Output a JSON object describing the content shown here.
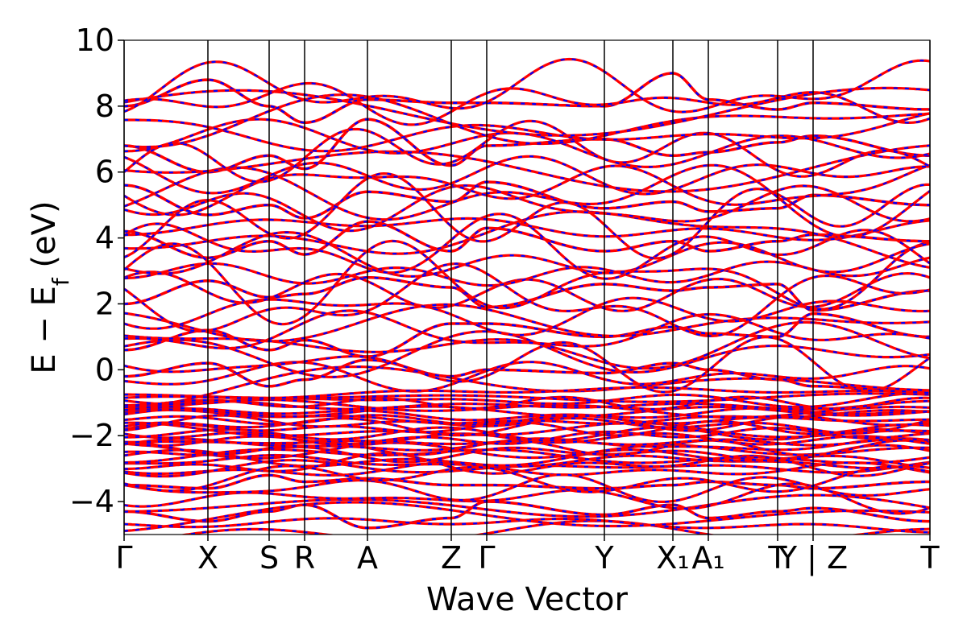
{
  "chart_data": {
    "type": "line",
    "title": "",
    "xlabel": "Wave Vector",
    "ylabel_main": "E − E",
    "ylabel_sub": "f",
    "ylabel_unit": " (eV)",
    "ylim": [
      -5,
      10
    ],
    "yticks": [
      -4,
      -2,
      0,
      2,
      4,
      6,
      8,
      10
    ],
    "ytick_labels": [
      "−4",
      "−2",
      "0",
      "2",
      "4",
      "6",
      "8",
      "10"
    ],
    "x_range": [
      0,
      1
    ],
    "kpoints": [
      {
        "label": "Γ",
        "x": 0.0
      },
      {
        "label": "X",
        "x": 0.104
      },
      {
        "label": "S",
        "x": 0.18
      },
      {
        "label": "R",
        "x": 0.224
      },
      {
        "label": "A",
        "x": 0.302
      },
      {
        "label": "Z",
        "x": 0.406
      },
      {
        "label": "Γ",
        "x": 0.45
      },
      {
        "label": "Y",
        "x": 0.596
      },
      {
        "label": "X₁",
        "x": 0.681
      },
      {
        "label": "A₁",
        "x": 0.725
      },
      {
        "label": "T",
        "x": 0.811
      },
      {
        "label": "Y | Z",
        "x": 0.855
      },
      {
        "label": "T",
        "x": 1.0
      }
    ],
    "grid": false,
    "legend": "none",
    "series": [
      {
        "color": "#ff0000",
        "linestyle": "solid"
      },
      {
        "color": "#0000ff",
        "linestyle": "dashed"
      }
    ],
    "bands_sample": [
      {
        "x": [
          0.0,
          0.104,
          0.18,
          0.224,
          0.302,
          0.406,
          0.45,
          0.596,
          0.681,
          0.725,
          0.811,
          0.855,
          1.0
        ],
        "y": [
          8.0,
          8.8,
          8.0,
          7.5,
          8.2,
          8.1,
          8.1,
          8.0,
          9.0,
          8.2,
          7.9,
          8.1,
          7.9
        ]
      },
      {
        "x": [
          0.0,
          0.104,
          0.18,
          0.224,
          0.302,
          0.406,
          0.45,
          0.596,
          0.681,
          0.725,
          0.811,
          0.855,
          1.0
        ],
        "y": [
          6.8,
          6.0,
          6.5,
          6.1,
          7.6,
          6.2,
          6.8,
          7.0,
          6.5,
          6.6,
          6.9,
          7.1,
          6.5
        ]
      },
      {
        "x": [
          0.0,
          0.104,
          0.18,
          0.224,
          0.302,
          0.406,
          0.45,
          0.596,
          0.681,
          0.725,
          0.811,
          0.855,
          1.0
        ],
        "y": [
          5.6,
          4.7,
          5.0,
          4.6,
          5.4,
          5.1,
          5.7,
          4.9,
          5.1,
          4.8,
          4.9,
          5.3,
          5.0
        ]
      },
      {
        "x": [
          0.0,
          0.104,
          0.18,
          0.224,
          0.302,
          0.406,
          0.45,
          0.596,
          0.681,
          0.725,
          0.811,
          0.855,
          1.0
        ],
        "y": [
          4.2,
          3.4,
          3.9,
          3.5,
          4.5,
          3.6,
          4.3,
          3.6,
          3.9,
          3.6,
          3.9,
          4.1,
          3.9
        ]
      },
      {
        "x": [
          0.0,
          0.104,
          0.18,
          0.224,
          0.302,
          0.406,
          0.45,
          0.596,
          0.681,
          0.725,
          0.811,
          0.855,
          1.0
        ],
        "y": [
          2.0,
          2.7,
          2.2,
          2.3,
          2.8,
          2.5,
          1.9,
          2.6,
          2.4,
          2.5,
          2.6,
          1.8,
          2.4
        ]
      },
      {
        "x": [
          0.0,
          0.104,
          0.18,
          0.224,
          0.302,
          0.406,
          0.45,
          0.596,
          0.681,
          0.725,
          0.811,
          0.855,
          1.0
        ],
        "y": [
          0.6,
          1.2,
          0.6,
          0.9,
          0.4,
          1.4,
          1.4,
          1.0,
          1.3,
          1.1,
          1.0,
          1.7,
          1.0
        ]
      },
      {
        "x": [
          0.0,
          0.104,
          0.18,
          0.224,
          0.302,
          0.406,
          0.45,
          0.596,
          0.681,
          0.725,
          0.811,
          0.855,
          1.0
        ],
        "y": [
          -0.2,
          0.2,
          -0.5,
          -0.3,
          0.3,
          -0.2,
          0.0,
          -0.1,
          0.2,
          0.0,
          -0.3,
          -0.5,
          -0.7
        ]
      },
      {
        "x": [
          0.0,
          0.104,
          0.18,
          0.224,
          0.302,
          0.406,
          0.45,
          0.596,
          0.681,
          0.725,
          0.811,
          0.855,
          1.0
        ],
        "y": [
          -3.5,
          -3.6,
          -3.2,
          -3.4,
          -3.3,
          -3.5,
          -3.5,
          -3.6,
          -3.5,
          -3.4,
          -3.5,
          -3.6,
          -3.4
        ]
      },
      {
        "x": [
          0.0,
          0.104,
          0.18,
          0.224,
          0.302,
          0.406,
          0.45,
          0.596,
          0.681,
          0.725,
          0.811,
          0.855,
          1.0
        ],
        "y": [
          -4.3,
          -4.6,
          -4.3,
          -4.1,
          -4.8,
          -4.5,
          -4.0,
          -4.4,
          -4.1,
          -4.5,
          -4.3,
          -4.2,
          -4.6
        ]
      }
    ]
  }
}
